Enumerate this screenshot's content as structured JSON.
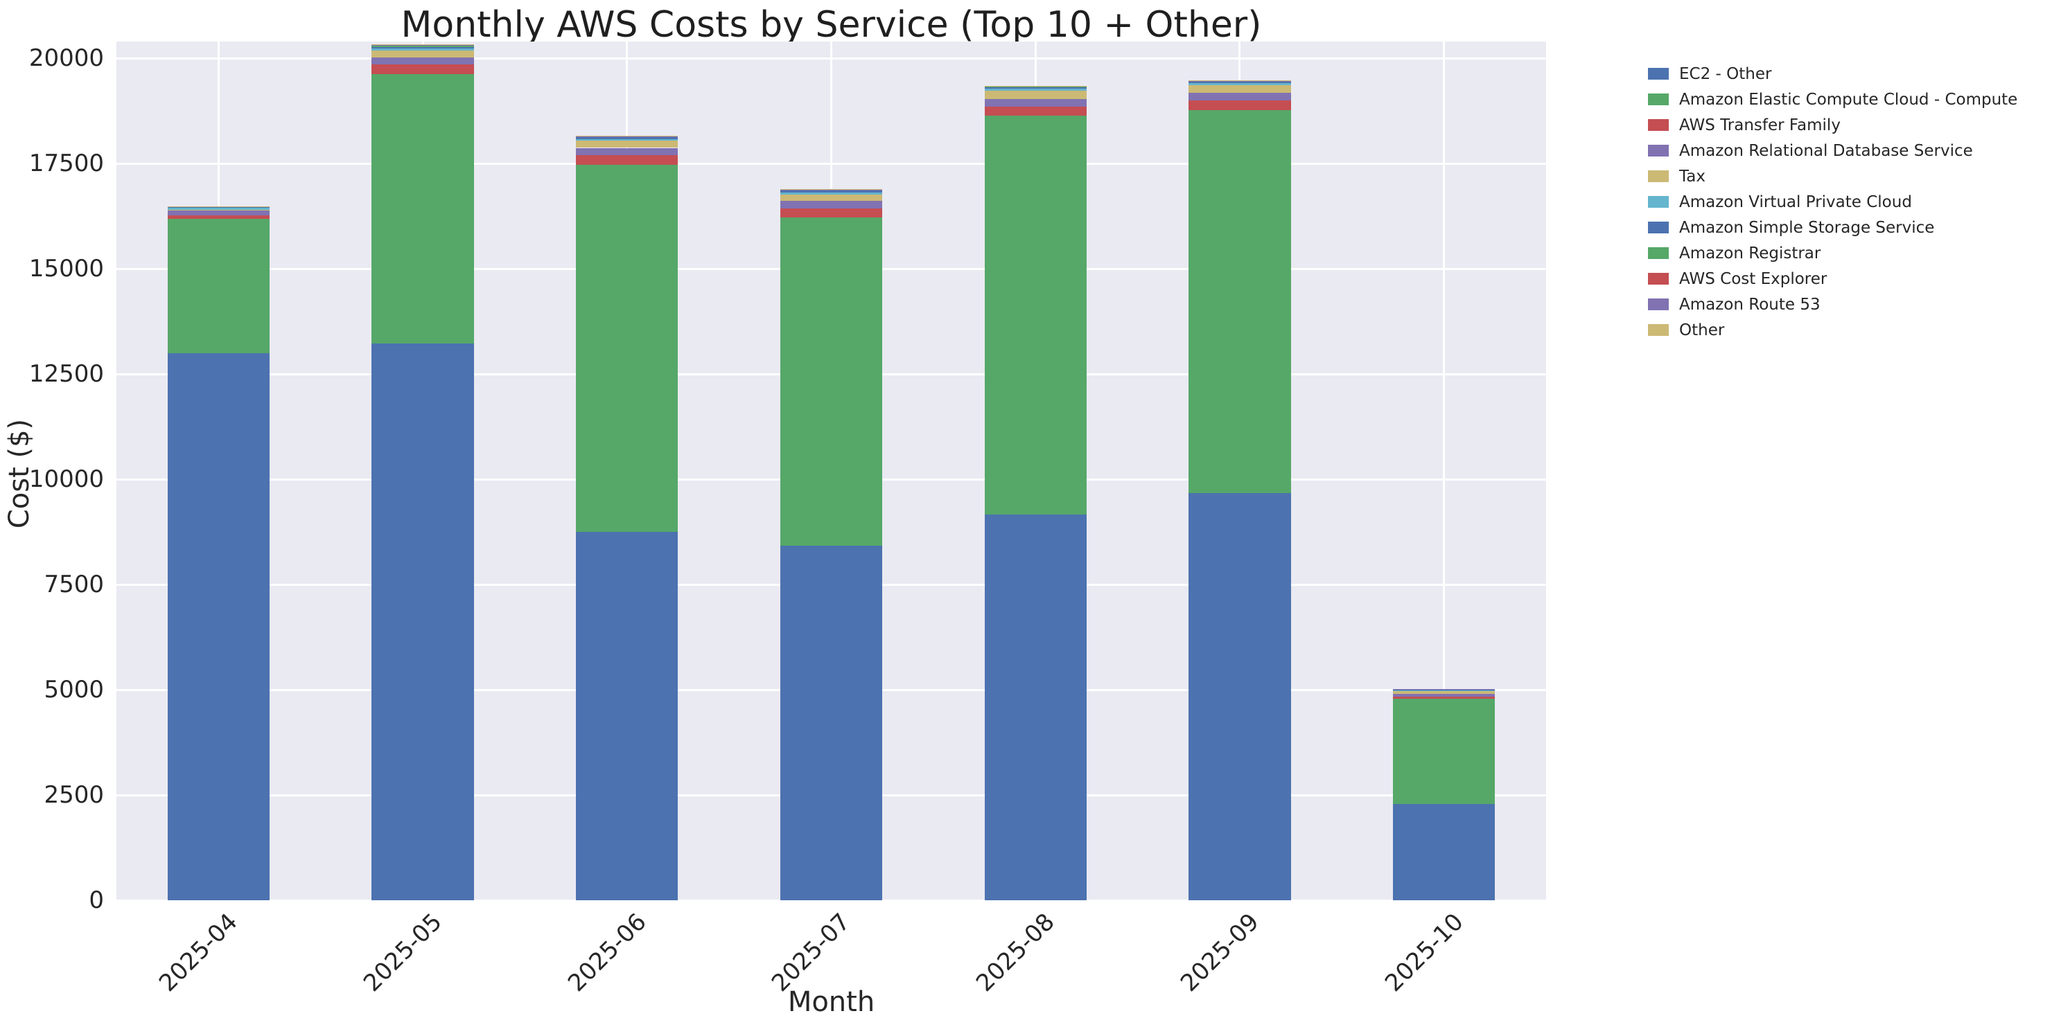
{
  "chart_data": {
    "type": "bar",
    "stacked": true,
    "title": "Monthly AWS Costs by Service (Top 10 + Other)",
    "xlabel": "Month",
    "ylabel": "Cost ($)",
    "categories": [
      "2025-04",
      "2025-05",
      "2025-06",
      "2025-07",
      "2025-08",
      "2025-09",
      "2025-10"
    ],
    "series": [
      {
        "name": "EC2 - Other",
        "color": "#4C72B0",
        "values": [
          13000,
          13220,
          8760,
          8430,
          9170,
          9680,
          2290
        ]
      },
      {
        "name": "Amazon Elastic Compute Cloud - Compute",
        "color": "#55A868",
        "values": [
          3195,
          6410,
          8710,
          7790,
          9470,
          9090,
          2495
        ]
      },
      {
        "name": "AWS Transfer Family",
        "color": "#C44E52",
        "values": [
          80,
          230,
          230,
          215,
          220,
          230,
          55
        ]
      },
      {
        "name": "Amazon Relational Database Service",
        "color": "#8172B2",
        "values": [
          130,
          165,
          175,
          180,
          175,
          185,
          65
        ]
      },
      {
        "name": "Tax",
        "color": "#CCB974",
        "values": [
          5,
          155,
          165,
          150,
          195,
          175,
          65
        ]
      },
      {
        "name": "Amazon Virtual Private Cloud",
        "color": "#64B5CD",
        "values": [
          40,
          55,
          45,
          55,
          50,
          45,
          8
        ]
      },
      {
        "name": "Amazon Simple Storage Service",
        "color": "#4C72B0",
        "values": [
          30,
          35,
          55,
          60,
          55,
          55,
          30
        ]
      },
      {
        "name": "Amazon Registrar",
        "color": "#55A868",
        "values": [
          3,
          33,
          3,
          3,
          3,
          3,
          2
        ]
      },
      {
        "name": "AWS Cost Explorer",
        "color": "#C44E52",
        "values": [
          3,
          8,
          3,
          3,
          3,
          3,
          2
        ]
      },
      {
        "name": "Amazon Route 53",
        "color": "#8172B2",
        "values": [
          2,
          15,
          2,
          2,
          2,
          2,
          2
        ]
      },
      {
        "name": "Other",
        "color": "#CCB974",
        "values": [
          2,
          10,
          15,
          7,
          12,
          12,
          1
        ]
      }
    ],
    "totals": [
      16490,
      20336,
      18163,
      16895,
      19355,
      19480,
      5015
    ],
    "ylim": [
      0,
      20400
    ],
    "yticks": [
      0,
      2500,
      5000,
      7500,
      10000,
      12500,
      15000,
      17500,
      20000
    ],
    "grid": true,
    "plot_background": "#EAEAF2",
    "grid_color": "#FFFFFF",
    "bar_width_fraction": 0.5,
    "legend_position": "outside-upper-right",
    "xtick_rotation_deg": 45
  }
}
